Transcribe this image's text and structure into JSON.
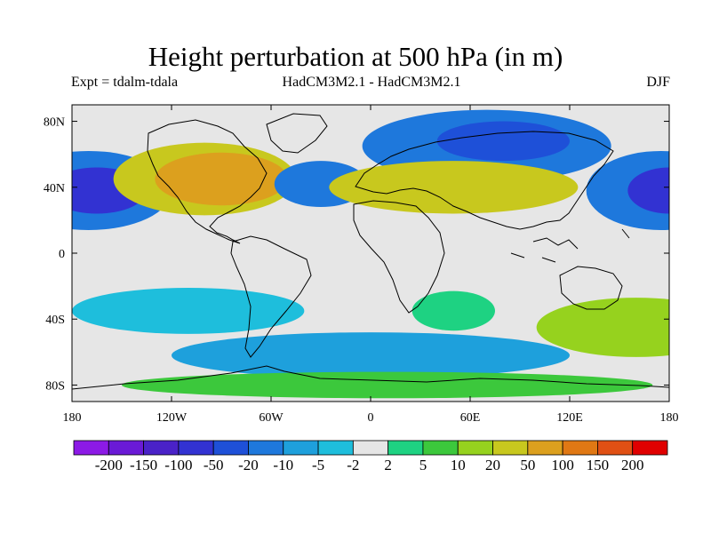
{
  "title": "Height perturbation at 500 hPa (in m)",
  "subtitle": {
    "left": "Expt = tdalm-tdala",
    "center": "HadCM3M2.1 - HadCM3M2.1",
    "right": "DJF"
  },
  "map": {
    "lon_ticks": [
      "180",
      "120W",
      "60W",
      "0",
      "60E",
      "120E",
      "180"
    ],
    "lat_ticks": [
      "80N",
      "40N",
      "0",
      "40S",
      "80S"
    ],
    "lon_range": [
      -180,
      180
    ],
    "lat_range": [
      -90,
      90
    ]
  },
  "colorbar": {
    "colors": [
      "#8c1ae6",
      "#6a1ad6",
      "#4a22c8",
      "#3232d2",
      "#1e50d8",
      "#1e78dc",
      "#1ea0dc",
      "#1ebedc",
      "#e6e6e6",
      "#1ed282",
      "#3cc83c",
      "#96d21e",
      "#c8c81e",
      "#dca01e",
      "#e07814",
      "#e05014",
      "#e00000"
    ],
    "labels": [
      "-200",
      "-150",
      "-100",
      "-50",
      "-20",
      "-10",
      "-5",
      "-2",
      "2",
      "5",
      "10",
      "20",
      "50",
      "100",
      "150",
      "200"
    ]
  },
  "anomalies": [
    {
      "lon": -170,
      "lat": 38,
      "rx": 50,
      "ry": 24,
      "level": 5
    },
    {
      "lon": -165,
      "lat": 38,
      "rx": 30,
      "ry": 14,
      "level": 3
    },
    {
      "lon": -100,
      "lat": 45,
      "rx": 55,
      "ry": 22,
      "level": 12
    },
    {
      "lon": -90,
      "lat": 45,
      "rx": 40,
      "ry": 16,
      "level": 13
    },
    {
      "lon": -30,
      "lat": 42,
      "rx": 28,
      "ry": 14,
      "level": 5
    },
    {
      "lon": 70,
      "lat": 65,
      "rx": 75,
      "ry": 22,
      "level": 5
    },
    {
      "lon": 80,
      "lat": 68,
      "rx": 40,
      "ry": 12,
      "level": 4
    },
    {
      "lon": 50,
      "lat": 40,
      "rx": 75,
      "ry": 16,
      "level": 12
    },
    {
      "lon": 175,
      "lat": 38,
      "rx": 45,
      "ry": 24,
      "level": 5
    },
    {
      "lon": 180,
      "lat": 38,
      "rx": 25,
      "ry": 14,
      "level": 3
    },
    {
      "lon": -110,
      "lat": -35,
      "rx": 70,
      "ry": 14,
      "level": 7
    },
    {
      "lon": 50,
      "lat": -35,
      "rx": 25,
      "ry": 12,
      "level": 9
    },
    {
      "lon": 160,
      "lat": -45,
      "rx": 60,
      "ry": 18,
      "level": 11
    },
    {
      "lon": 0,
      "lat": -62,
      "rx": 120,
      "ry": 14,
      "level": 6
    },
    {
      "lon": 10,
      "lat": -80,
      "rx": 160,
      "ry": 8,
      "level": 10
    }
  ]
}
